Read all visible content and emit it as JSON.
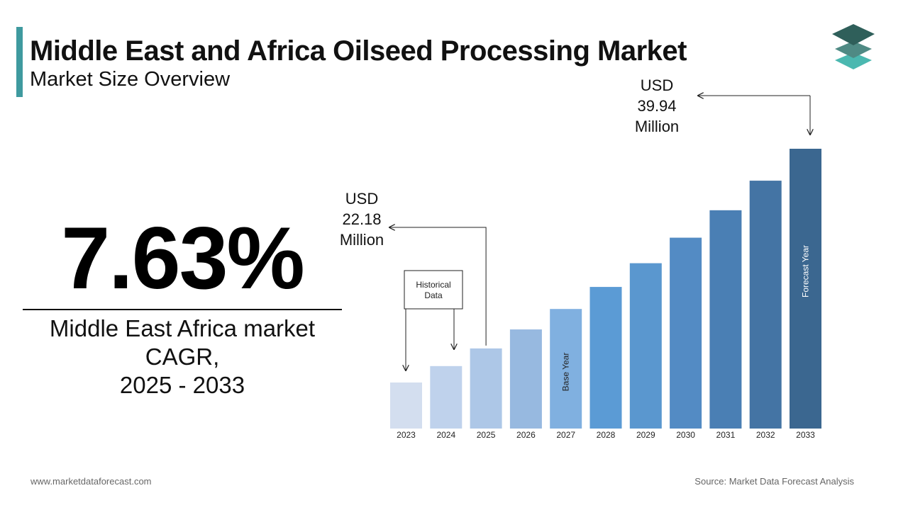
{
  "header": {
    "title": "Middle East and Africa Oilseed Processing Market",
    "subtitle": "Market Size Overview"
  },
  "logo": {
    "icon": "stacked-layers-logo-icon",
    "colors": [
      "#2f5f5a",
      "#4f8a84",
      "#4bb8b0"
    ]
  },
  "cagr": {
    "value": "7.63%",
    "description_lines": [
      "Middle East Africa market",
      "CAGR,",
      "2025 - 2033"
    ]
  },
  "callouts": {
    "start": {
      "lines": [
        "USD",
        "22.18",
        "Million"
      ],
      "year": "2025"
    },
    "end": {
      "lines": [
        "USD",
        "39.94",
        "Million"
      ],
      "year": "2033"
    },
    "historical": {
      "lines": [
        "Historical",
        "Data"
      ]
    }
  },
  "chart_data": {
    "type": "bar",
    "categories": [
      "2023",
      "2024",
      "2025",
      "2026",
      "2027",
      "2028",
      "2029",
      "2030",
      "2031",
      "2032",
      "2033"
    ],
    "values": [
      19.15,
      20.61,
      22.18,
      23.87,
      25.69,
      27.65,
      29.76,
      32.03,
      34.47,
      37.1,
      39.94
    ],
    "bar_colors": [
      "#d3deef",
      "#bfd2ec",
      "#adc7e7",
      "#97b9e0",
      "#80b0e0",
      "#5b9bd5",
      "#5a97cf",
      "#538bc4",
      "#4a7fb4",
      "#4474a4",
      "#3b6790"
    ],
    "bar_labels": {
      "2027": "Base Year",
      "2033": "Forecast Year"
    }
  },
  "footer": {
    "website": "www.marketdataforecast.com",
    "source": "Source: Market Data Forecast Analysis"
  }
}
